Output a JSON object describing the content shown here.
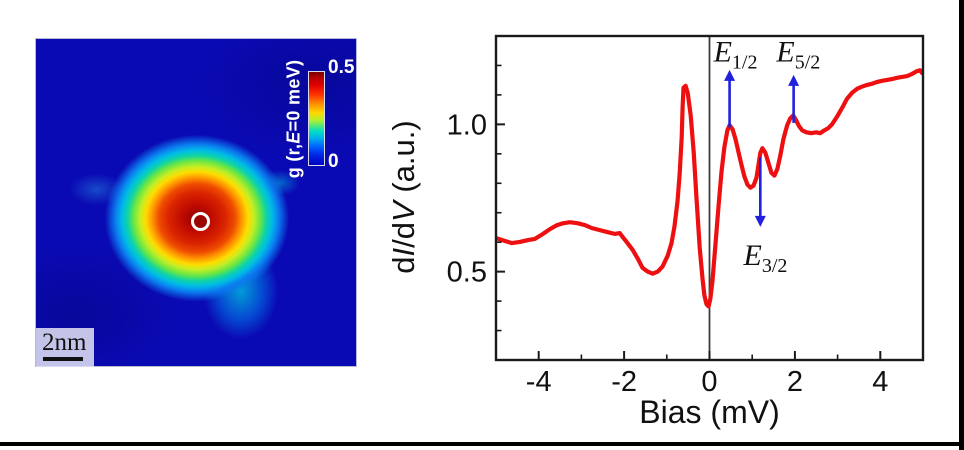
{
  "chart_data": [
    {
      "type": "heatmap",
      "colorbar": {
        "label_pre": "g (r,",
        "label_italic": "E",
        "label_post": "=0 meV)",
        "tick_max": "0.5",
        "tick_min": "0",
        "range": [
          0,
          0.5
        ]
      },
      "scale_bar_label": "2nm",
      "background_color": "#0a0ab4",
      "hotspot_colors": [
        "#8c0000",
        "#e00000",
        "#ff9400",
        "#ffdc00",
        "#66e646",
        "#00bce6",
        "#0a0ab4"
      ]
    },
    {
      "type": "line",
      "title": "",
      "xlabel": "Bias (mV)",
      "ylabel": "dI/dV (a.u.)",
      "ylabel_parts": [
        {
          "text": "d",
          "italic": false
        },
        {
          "text": "I",
          "italic": true
        },
        {
          "text": "/d",
          "italic": false
        },
        {
          "text": "V",
          "italic": true
        },
        {
          "text": " (a.u.)",
          "italic": false
        }
      ],
      "xlim": [
        -5,
        5
      ],
      "ylim": [
        0.2,
        1.3
      ],
      "x_major_ticks": [
        -4,
        -2,
        0,
        2,
        4
      ],
      "x_minor_ticks": [
        -3,
        -1,
        1,
        3
      ],
      "y_major_ticks": [
        0.5,
        1.0
      ],
      "y_minor_ticks": [
        0.3,
        0.4,
        0.6,
        0.7,
        0.8,
        0.9,
        1.1,
        1.2
      ],
      "y_major_tick_labels": [
        "0.5",
        "1.0"
      ],
      "zero_line_x": 0,
      "grid": false,
      "arrow_color": "#2020dd",
      "series": [
        {
          "name": "dI/dV spectrum",
          "color": "#ee1010",
          "points": [
            [
              -5.0,
              0.614
            ],
            [
              -4.79,
              0.604
            ],
            [
              -4.63,
              0.597
            ],
            [
              -4.44,
              0.601
            ],
            [
              -4.25,
              0.607
            ],
            [
              -4.09,
              0.611
            ],
            [
              -3.9,
              0.628
            ],
            [
              -3.74,
              0.644
            ],
            [
              -3.57,
              0.658
            ],
            [
              -3.43,
              0.664
            ],
            [
              -3.27,
              0.668
            ],
            [
              -3.08,
              0.664
            ],
            [
              -2.92,
              0.658
            ],
            [
              -2.76,
              0.648
            ],
            [
              -2.57,
              0.641
            ],
            [
              -2.38,
              0.634
            ],
            [
              -2.22,
              0.628
            ],
            [
              -2.1,
              0.631
            ],
            [
              -2.03,
              0.617
            ],
            [
              -1.92,
              0.597
            ],
            [
              -1.8,
              0.574
            ],
            [
              -1.68,
              0.544
            ],
            [
              -1.57,
              0.513
            ],
            [
              -1.45,
              0.5
            ],
            [
              -1.33,
              0.493
            ],
            [
              -1.21,
              0.5
            ],
            [
              -1.1,
              0.517
            ],
            [
              -0.98,
              0.554
            ],
            [
              -0.89,
              0.597
            ],
            [
              -0.82,
              0.654
            ],
            [
              -0.75,
              0.738
            ],
            [
              -0.7,
              0.829
            ],
            [
              -0.65,
              0.956
            ],
            [
              -0.63,
              1.057
            ],
            [
              -0.61,
              1.124
            ],
            [
              -0.56,
              1.131
            ],
            [
              -0.51,
              1.107
            ],
            [
              -0.44,
              1.03
            ],
            [
              -0.37,
              0.906
            ],
            [
              -0.3,
              0.738
            ],
            [
              -0.23,
              0.581
            ],
            [
              -0.16,
              0.47
            ],
            [
              -0.12,
              0.419
            ],
            [
              -0.07,
              0.389
            ],
            [
              -0.02,
              0.382
            ],
            [
              0.02,
              0.409
            ],
            [
              0.07,
              0.47
            ],
            [
              0.14,
              0.594
            ],
            [
              0.21,
              0.721
            ],
            [
              0.28,
              0.839
            ],
            [
              0.35,
              0.923
            ],
            [
              0.42,
              0.98
            ],
            [
              0.47,
              0.997
            ],
            [
              0.54,
              0.983
            ],
            [
              0.61,
              0.95
            ],
            [
              0.68,
              0.906
            ],
            [
              0.75,
              0.862
            ],
            [
              0.82,
              0.822
            ],
            [
              0.89,
              0.795
            ],
            [
              0.96,
              0.785
            ],
            [
              1.03,
              0.792
            ],
            [
              1.1,
              0.819
            ],
            [
              1.14,
              0.856
            ],
            [
              1.19,
              0.903
            ],
            [
              1.24,
              0.919
            ],
            [
              1.31,
              0.903
            ],
            [
              1.38,
              0.869
            ],
            [
              1.45,
              0.836
            ],
            [
              1.52,
              0.826
            ],
            [
              1.59,
              0.849
            ],
            [
              1.66,
              0.896
            ],
            [
              1.73,
              0.95
            ],
            [
              1.82,
              0.997
            ],
            [
              1.89,
              1.02
            ],
            [
              1.96,
              1.03
            ],
            [
              2.03,
              1.013
            ],
            [
              2.1,
              0.993
            ],
            [
              2.17,
              0.98
            ],
            [
              2.27,
              0.973
            ],
            [
              2.38,
              0.97
            ],
            [
              2.5,
              0.973
            ],
            [
              2.59,
              0.97
            ],
            [
              2.69,
              0.98
            ],
            [
              2.78,
              0.987
            ],
            [
              2.87,
              1.0
            ],
            [
              2.99,
              1.027
            ],
            [
              3.11,
              1.057
            ],
            [
              3.22,
              1.087
            ],
            [
              3.34,
              1.107
            ],
            [
              3.46,
              1.121
            ],
            [
              3.57,
              1.128
            ],
            [
              3.69,
              1.134
            ],
            [
              3.81,
              1.138
            ],
            [
              3.93,
              1.144
            ],
            [
              4.04,
              1.148
            ],
            [
              4.16,
              1.151
            ],
            [
              4.28,
              1.154
            ],
            [
              4.39,
              1.158
            ],
            [
              4.51,
              1.161
            ],
            [
              4.63,
              1.164
            ],
            [
              4.74,
              1.171
            ],
            [
              4.86,
              1.181
            ],
            [
              4.93,
              1.184
            ],
            [
              4.98,
              1.174
            ]
          ]
        }
      ],
      "annotations": [
        {
          "base": "E",
          "sub": "1/2",
          "direction": "up",
          "arrow_x": 0.47,
          "arrow_y_from": 0.99,
          "arrow_y_to": 1.185,
          "label_x": 0.61,
          "label_y": 1.25
        },
        {
          "base": "E",
          "sub": "3/2",
          "direction": "down",
          "arrow_x": 1.19,
          "arrow_y_from": 0.889,
          "arrow_y_to": 0.652,
          "label_x": 1.31,
          "label_y": 0.56
        },
        {
          "base": "E",
          "sub": "5/2",
          "direction": "up",
          "arrow_x": 1.97,
          "arrow_y_from": 1.005,
          "arrow_y_to": 1.168,
          "label_x": 2.08,
          "label_y": 1.25
        }
      ]
    }
  ]
}
